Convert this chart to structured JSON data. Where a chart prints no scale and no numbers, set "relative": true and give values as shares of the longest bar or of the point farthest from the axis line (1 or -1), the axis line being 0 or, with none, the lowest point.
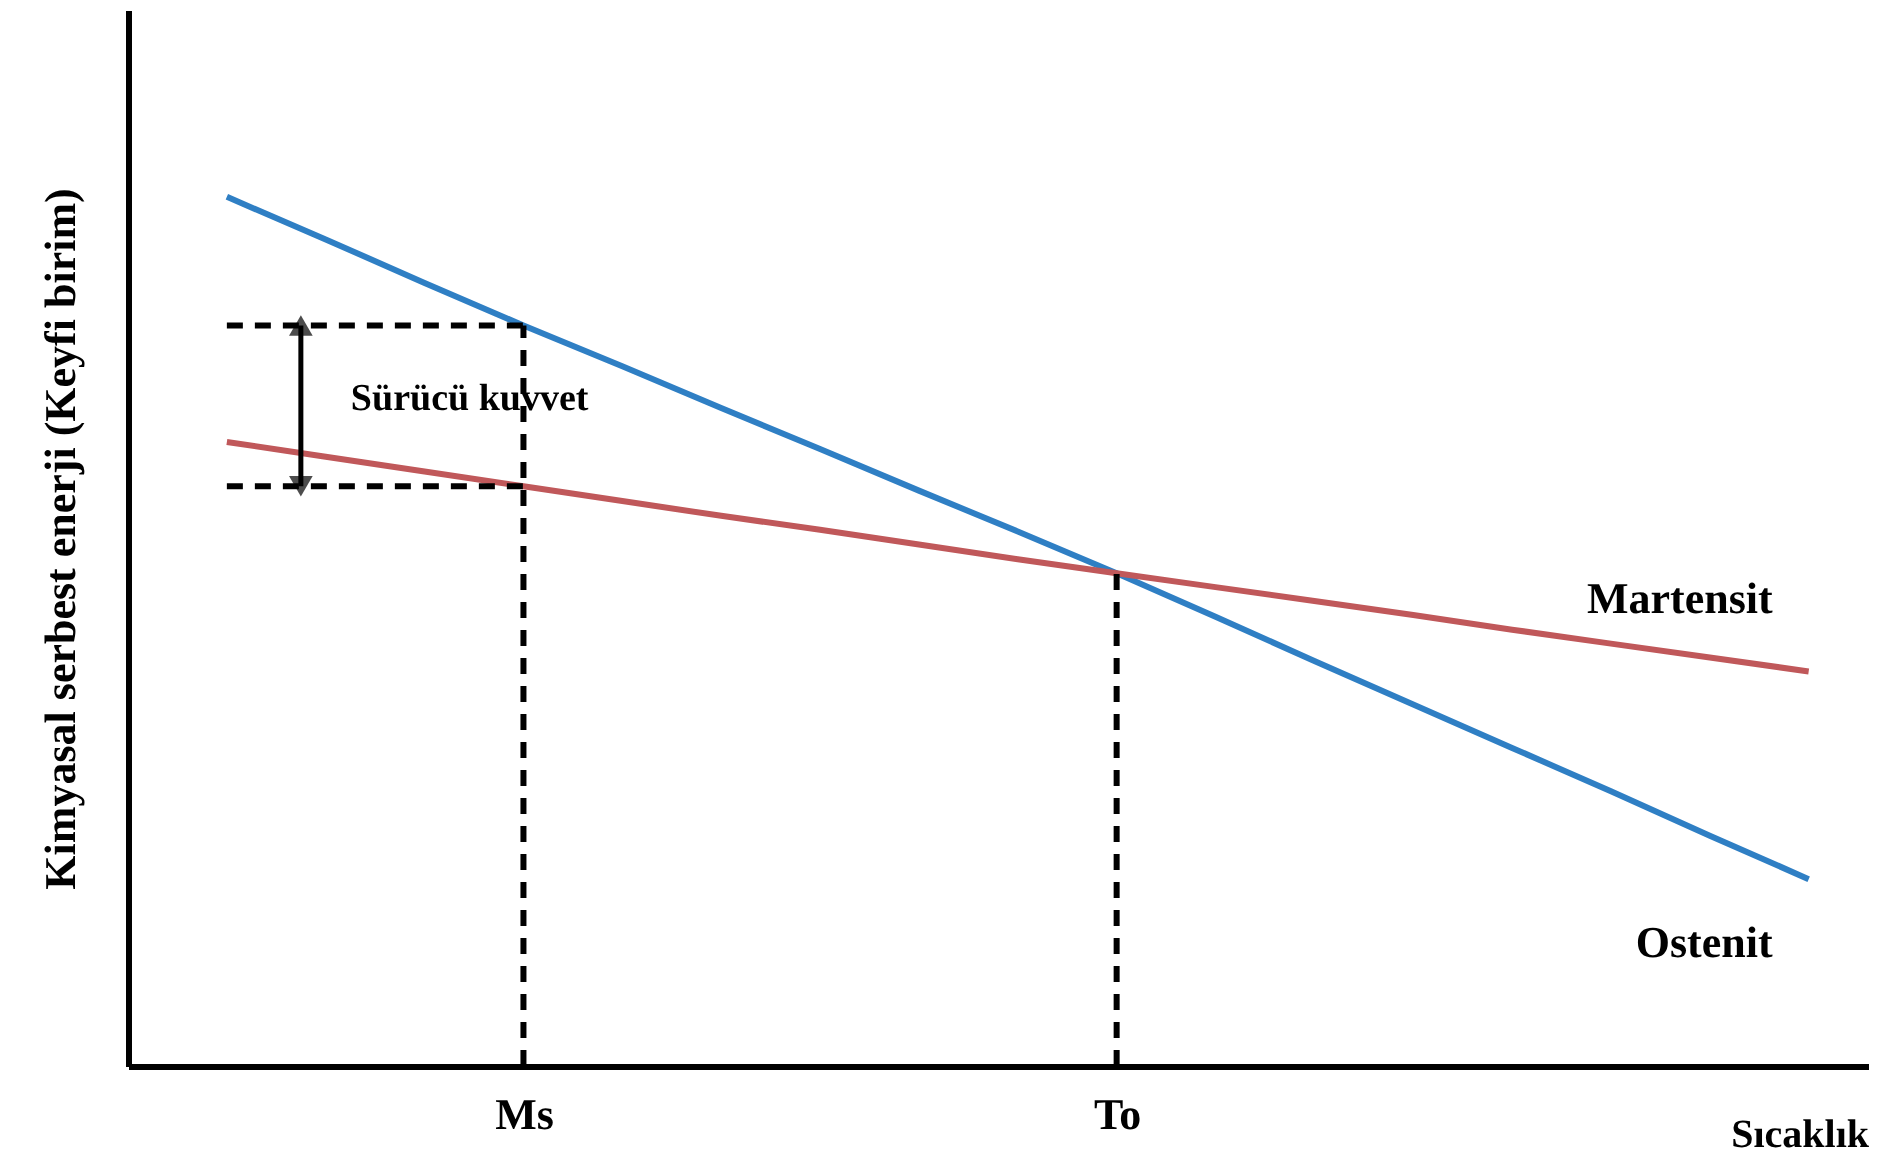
{
  "chart_data": {
    "type": "line",
    "relative": true,
    "xlabel": "Sıcaklık",
    "ylabel": "Kimyasal serbest enerji  (Keyfi birim)",
    "categories": [
      null,
      null,
      null,
      "Ms",
      null,
      null,
      null,
      null,
      null,
      "To",
      null,
      null,
      null,
      null,
      null,
      null,
      null
    ],
    "series": [
      {
        "name": "Ostenit",
        "color": "#2f7fc4",
        "values": [
          1,
          0.951,
          0.901,
          0.852,
          0.805,
          0.757,
          0.71,
          0.662,
          0.615,
          0.567,
          0.517,
          0.466,
          0.416,
          0.366,
          0.316,
          0.265,
          0.215
        ]
      },
      {
        "name": "Martensit",
        "color": "#c0585a",
        "values": [
          0.718,
          0.701,
          0.684,
          0.667,
          0.65,
          0.633,
          0.617,
          0.6,
          0.583,
          0.567,
          0.551,
          0.535,
          0.519,
          0.502,
          0.486,
          0.47,
          0.454
        ]
      }
    ],
    "ref_lines": [
      {
        "axis": "x",
        "value": "Ms",
        "line_style": "dashed"
      },
      {
        "axis": "x",
        "value": "To",
        "line_style": "dashed"
      },
      {
        "axis": "y",
        "value": 0.852,
        "line_style": "dashed"
      },
      {
        "axis": "y",
        "value": 0.667,
        "line_style": "dashed"
      }
    ],
    "annotations": [
      "Sürücü kuvvet"
    ],
    "grid": false,
    "legend": false,
    "marker": "none",
    "line_style": "solid"
  }
}
